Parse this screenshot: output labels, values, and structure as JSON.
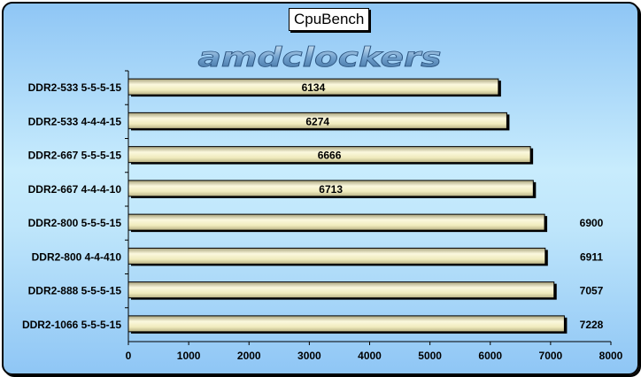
{
  "chart_data": {
    "type": "bar",
    "orientation": "horizontal",
    "title": "CpuBench",
    "categories": [
      "DDR2-533 5-5-5-15",
      "DDR2-533 4-4-4-15",
      "DDR2-667 5-5-5-15",
      "DDR2-667 4-4-4-10",
      "DDR2-800 5-5-5-15",
      "DDR2-800 4-4-410",
      "DDR2-888 5-5-5-15",
      "DDR2-1066 5-5-5-15"
    ],
    "values": [
      6134,
      6274,
      6666,
      6713,
      6900,
      6911,
      7057,
      7228
    ],
    "xlim": [
      0,
      8000
    ],
    "xticks": [
      0,
      1000,
      2000,
      3000,
      4000,
      5000,
      6000,
      7000,
      8000
    ],
    "grid": false,
    "bar_color": "#f3efc4",
    "background_color": "#b4def9"
  },
  "logo": {
    "text": "amdclockers"
  }
}
